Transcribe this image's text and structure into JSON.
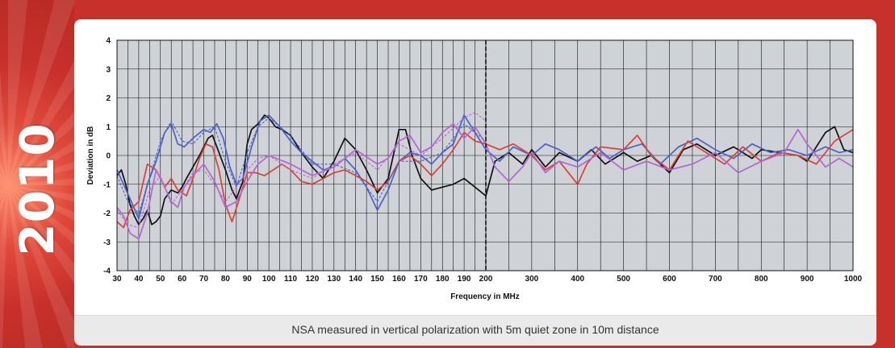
{
  "sidebar": {
    "year": "2010"
  },
  "caption": "NSA measured in vertical polarization with 5m quiet zone in 10m distance",
  "chart_data": {
    "type": "line",
    "xlabel": "Frequency in MHz",
    "ylabel": "Deviation in dB",
    "ylim": [
      -4,
      4
    ],
    "y_ticks": [
      4,
      3,
      2,
      1,
      0,
      -1,
      -2,
      -3,
      -4
    ],
    "x_tick_labels_low": [
      "30",
      "40",
      "50",
      "60",
      "70",
      "80",
      "90",
      "100",
      "110",
      "120",
      "130",
      "140",
      "150",
      "160",
      "170",
      "180",
      "190",
      "200"
    ],
    "x_tick_labels_high": [
      "300",
      "400",
      "500",
      "600",
      "700",
      "800",
      "900",
      "1000"
    ],
    "x_segments": [
      {
        "range": [
          30,
          200
        ],
        "tick_step": 5,
        "label_step": 10
      },
      {
        "range": [
          200,
          1000
        ],
        "tick_step": 50,
        "label_step": 100
      }
    ],
    "grid": true,
    "divider_x": 200,
    "series": [
      {
        "color": "#111111",
        "dashed": false,
        "x": [
          30,
          32,
          34,
          36,
          38,
          40,
          42,
          44,
          46,
          48,
          50,
          52,
          55,
          58,
          60,
          62,
          65,
          68,
          70,
          72,
          74,
          76,
          78,
          80,
          83,
          85,
          88,
          90,
          92,
          95,
          98,
          100,
          103,
          106,
          110,
          115,
          120,
          125,
          130,
          135,
          140,
          145,
          150,
          155,
          160,
          163,
          166,
          170,
          175,
          180,
          185,
          190,
          195,
          200,
          220,
          250,
          280,
          300,
          330,
          360,
          400,
          430,
          460,
          500,
          530,
          560,
          600,
          630,
          660,
          700,
          740,
          780,
          800,
          840,
          880,
          900,
          920,
          940,
          960,
          980,
          1000
        ],
        "y": [
          -0.7,
          -0.5,
          -1.0,
          -1.7,
          -2.1,
          -2.4,
          -2.2,
          -1.9,
          -2.4,
          -2.3,
          -2.1,
          -1.5,
          -1.2,
          -1.3,
          -1.1,
          -0.8,
          -0.4,
          0.0,
          0.3,
          0.6,
          0.7,
          0.3,
          -0.1,
          -0.5,
          -1.2,
          -1.5,
          -0.9,
          0.4,
          0.9,
          1.1,
          1.4,
          1.3,
          1.0,
          0.9,
          0.7,
          0.1,
          -0.4,
          -0.8,
          -0.2,
          0.6,
          0.2,
          -0.5,
          -1.3,
          -0.8,
          0.9,
          0.9,
          0.0,
          -0.8,
          -1.2,
          -1.1,
          -1.0,
          -0.8,
          -1.1,
          -1.4,
          -0.2,
          0.1,
          -0.3,
          0.2,
          -0.4,
          0.1,
          -0.2,
          0.2,
          -0.3,
          0.1,
          -0.2,
          0.0,
          -0.6,
          0.2,
          0.4,
          0.0,
          0.3,
          -0.1,
          0.2,
          0.1,
          0.0,
          -0.2,
          0.3,
          0.8,
          1.0,
          0.2,
          0.1
        ]
      },
      {
        "color": "#4a62c8",
        "dashed": false,
        "x": [
          30,
          33,
          36,
          40,
          44,
          48,
          52,
          55,
          58,
          61,
          65,
          70,
          73,
          76,
          79,
          82,
          85,
          88,
          92,
          96,
          100,
          105,
          110,
          115,
          120,
          125,
          130,
          135,
          140,
          145,
          150,
          155,
          160,
          165,
          170,
          175,
          180,
          185,
          190,
          195,
          200,
          230,
          260,
          300,
          330,
          360,
          400,
          440,
          470,
          500,
          540,
          580,
          620,
          660,
          700,
          740,
          780,
          820,
          860,
          900,
          940,
          970,
          1000
        ],
        "y": [
          -0.5,
          -1.0,
          -1.5,
          -2.2,
          -1.0,
          -0.2,
          0.8,
          1.1,
          0.4,
          0.3,
          0.6,
          0.9,
          0.8,
          1.1,
          0.6,
          -0.4,
          -1.0,
          -0.8,
          0.3,
          1.2,
          1.4,
          1.0,
          0.5,
          0.1,
          -0.2,
          -0.5,
          -0.4,
          -0.1,
          -0.5,
          -1.1,
          -1.9,
          -1.2,
          -0.2,
          0.1,
          0.0,
          -0.3,
          0.1,
          0.4,
          1.4,
          0.8,
          0.2,
          -0.2,
          0.3,
          0.0,
          0.4,
          0.2,
          -0.2,
          0.3,
          -0.1,
          0.2,
          0.4,
          -0.3,
          0.3,
          0.6,
          0.2,
          -0.1,
          0.4,
          0.1,
          0.2,
          0.0,
          0.3,
          0.1,
          0.2
        ]
      },
      {
        "color": "#d8413a",
        "dashed": false,
        "x": [
          30,
          33,
          36,
          40,
          44,
          48,
          52,
          55,
          58,
          62,
          65,
          68,
          71,
          74,
          77,
          80,
          83,
          86,
          90,
          94,
          98,
          102,
          106,
          110,
          115,
          120,
          125,
          130,
          135,
          140,
          145,
          150,
          155,
          160,
          165,
          170,
          175,
          180,
          185,
          190,
          195,
          200,
          230,
          260,
          300,
          330,
          360,
          400,
          420,
          450,
          500,
          530,
          560,
          600,
          640,
          680,
          720,
          760,
          800,
          840,
          880,
          920,
          960,
          1000
        ],
        "y": [
          -2.3,
          -2.5,
          -1.9,
          -1.6,
          -0.3,
          -0.5,
          -1.1,
          -0.8,
          -1.2,
          -1.4,
          -0.8,
          -0.1,
          0.4,
          0.3,
          -0.5,
          -1.7,
          -2.3,
          -1.6,
          -0.6,
          -0.6,
          -0.7,
          -0.5,
          -0.3,
          -0.5,
          -0.9,
          -1.0,
          -0.8,
          -0.6,
          -0.5,
          -0.7,
          -0.9,
          -1.2,
          -0.9,
          -0.2,
          0.0,
          -0.3,
          -0.7,
          -0.3,
          0.2,
          0.8,
          0.5,
          0.4,
          0.2,
          0.4,
          0.0,
          -0.5,
          -0.2,
          -1.0,
          -0.3,
          0.3,
          0.2,
          0.7,
          0.0,
          -0.5,
          0.5,
          0.1,
          -0.3,
          0.3,
          -0.2,
          0.1,
          0.0,
          -0.3,
          0.5,
          0.9
        ]
      },
      {
        "color": "#b366d0",
        "dashed": false,
        "x": [
          30,
          33,
          36,
          40,
          44,
          48,
          52,
          55,
          58,
          61,
          65,
          70,
          75,
          80,
          85,
          90,
          95,
          100,
          110,
          120,
          130,
          140,
          150,
          155,
          160,
          165,
          170,
          175,
          180,
          185,
          190,
          195,
          200,
          220,
          250,
          280,
          300,
          330,
          360,
          400,
          450,
          500,
          550,
          600,
          650,
          700,
          750,
          800,
          850,
          880,
          900,
          940,
          970,
          1000
        ],
        "y": [
          -1.8,
          -2.1,
          -2.7,
          -2.9,
          -2.0,
          -0.5,
          -1.1,
          -1.6,
          -1.8,
          -1.1,
          -0.7,
          -0.3,
          -0.9,
          -1.8,
          -1.6,
          -0.9,
          -0.3,
          0.0,
          -0.3,
          -0.7,
          -0.4,
          0.2,
          -0.3,
          -0.1,
          0.5,
          0.7,
          0.1,
          0.3,
          0.8,
          1.1,
          0.6,
          1.0,
          0.4,
          -0.4,
          -0.9,
          -0.4,
          0.1,
          -0.6,
          -0.2,
          -0.4,
          0.1,
          -0.5,
          -0.2,
          -0.5,
          -0.3,
          0.1,
          -0.6,
          -0.2,
          0.1,
          0.9,
          0.4,
          -0.4,
          -0.1,
          -0.4
        ]
      },
      {
        "color": "#4a62c8",
        "dashed": true,
        "x": [
          30,
          35,
          40,
          45,
          50,
          55,
          60,
          65,
          70,
          75,
          80,
          85,
          90,
          95,
          100,
          110,
          120,
          130,
          140,
          150,
          160,
          170,
          180,
          190,
          200
        ],
        "y": [
          -0.7,
          -1.6,
          -2.0,
          -0.8,
          0.5,
          1.2,
          0.5,
          0.4,
          0.8,
          1.0,
          -0.2,
          -1.1,
          0.1,
          1.0,
          1.3,
          0.7,
          -0.3,
          -0.3,
          -0.6,
          -1.6,
          -0.2,
          -0.2,
          0.1,
          1.1,
          0.5
        ]
      },
      {
        "color": "#b366d0",
        "dashed": true,
        "x": [
          30,
          35,
          40,
          45,
          50,
          55,
          60,
          65,
          70,
          75,
          80,
          85,
          90,
          95,
          100,
          110,
          120,
          130,
          140,
          150,
          160,
          170,
          180,
          190,
          195,
          200
        ],
        "y": [
          -1.9,
          -2.4,
          -2.5,
          -1.2,
          -0.7,
          -1.7,
          -1.2,
          -0.6,
          -0.5,
          -1.0,
          -1.6,
          -1.1,
          -0.5,
          -0.1,
          0.0,
          -0.5,
          -0.8,
          -0.3,
          0.1,
          -0.5,
          0.4,
          0.0,
          0.6,
          1.3,
          1.5,
          1.2
        ]
      }
    ]
  }
}
